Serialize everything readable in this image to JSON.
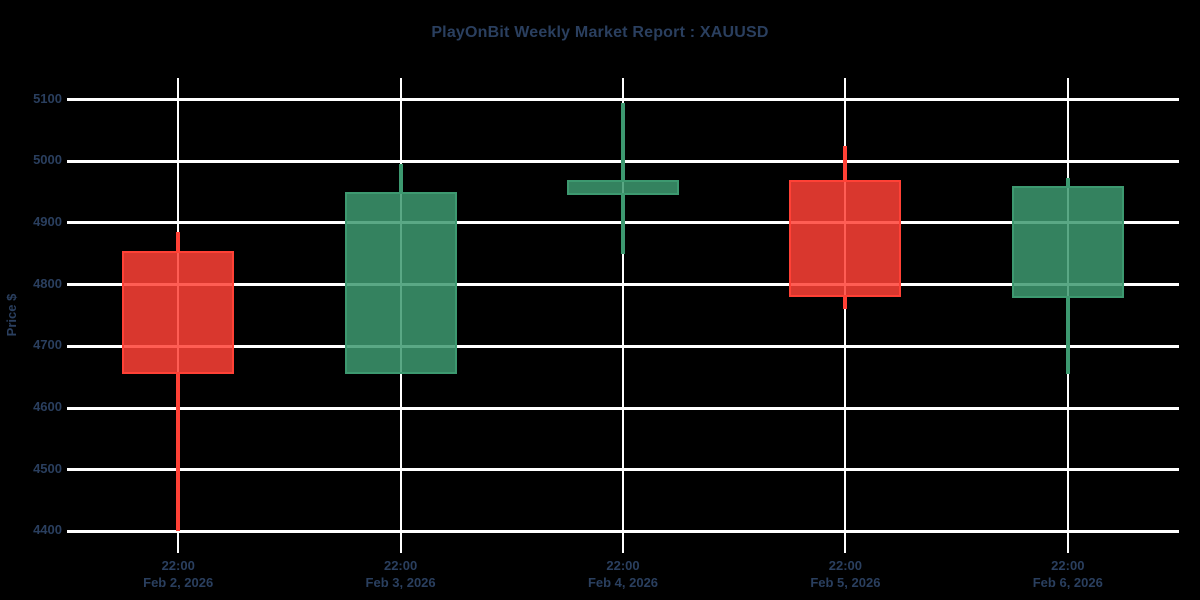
{
  "chart_data": {
    "type": "candlestick",
    "title": "PlayOnBit Weekly Market Report : XAUUSD",
    "ylabel": "Price $",
    "xlabel": "",
    "ylim": [
      4365,
      5135
    ],
    "y_ticks": [
      5100,
      5000,
      4900,
      4800,
      4700,
      4600,
      4500,
      4400
    ],
    "grid": true,
    "legend": false,
    "colors": {
      "increasing": "#3D9970",
      "decreasing": "#FF4136",
      "grid": "#FFFFFF",
      "font": "#2A3F5F",
      "background": "#000000"
    },
    "series": [
      {
        "time": "22:00",
        "date": "Feb 2, 2026",
        "open": 4855,
        "high": 4885,
        "low": 4400,
        "close": 4655,
        "direction": "decreasing"
      },
      {
        "time": "22:00",
        "date": "Feb 3, 2026",
        "open": 4655,
        "high": 4995,
        "low": 4655,
        "close": 4950,
        "direction": "increasing"
      },
      {
        "time": "22:00",
        "date": "Feb 4, 2026",
        "open": 4945,
        "high": 5095,
        "low": 4850,
        "close": 4970,
        "direction": "increasing"
      },
      {
        "time": "22:00",
        "date": "Feb 5, 2026",
        "open": 4970,
        "high": 5025,
        "low": 4760,
        "close": 4780,
        "direction": "decreasing"
      },
      {
        "time": "22:00",
        "date": "Feb 6, 2026",
        "open": 4778,
        "high": 4973,
        "low": 4655,
        "close": 4960,
        "direction": "increasing"
      }
    ]
  }
}
